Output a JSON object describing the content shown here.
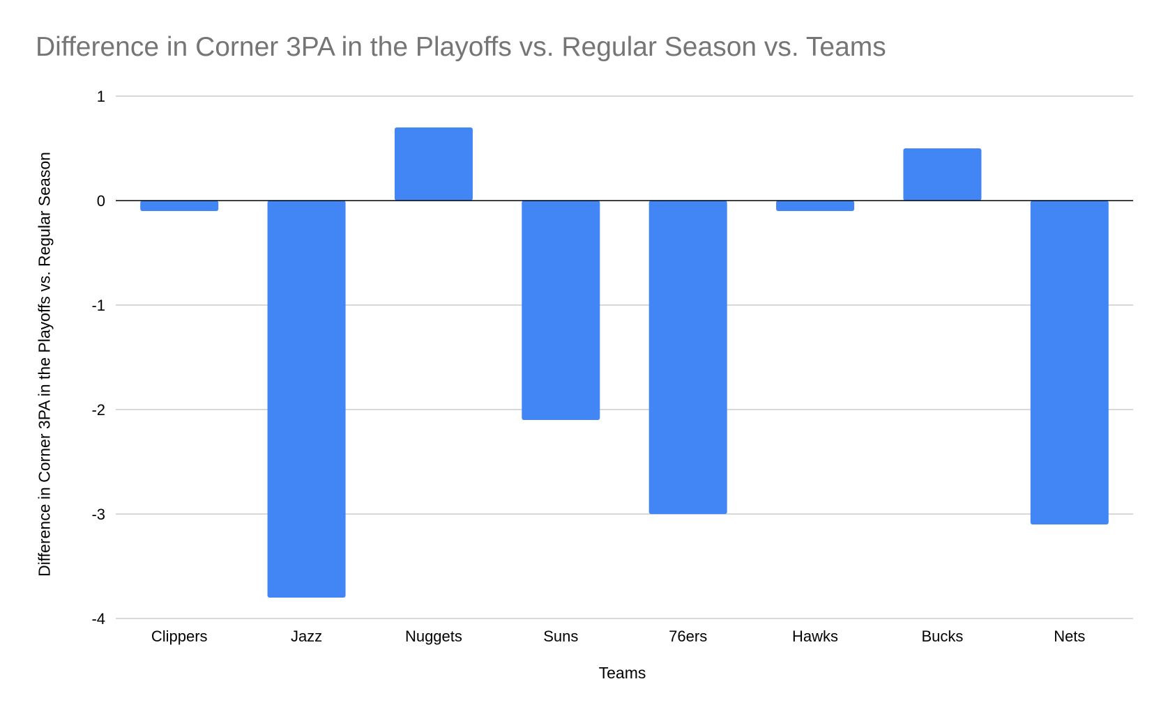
{
  "chart_data": {
    "type": "bar",
    "title": "Difference in Corner 3PA in the Playoffs vs. Regular Season vs. Teams",
    "xlabel": "Teams",
    "ylabel": "Difference in Corner 3PA in the Playoffs vs. Regular Season",
    "categories": [
      "Clippers",
      "Jazz",
      "Nuggets",
      "Suns",
      "76ers",
      "Hawks",
      "Bucks",
      "Nets"
    ],
    "values": [
      -0.1,
      -3.8,
      0.7,
      -2.1,
      -3.0,
      -0.1,
      0.5,
      -3.1
    ],
    "ylim": [
      -4,
      1
    ],
    "yticks": [
      1,
      0,
      -1,
      -2,
      -3,
      -4
    ],
    "grid": true,
    "legend": "none",
    "bar_color": "#4285f4",
    "gridline_color": "#cccccc",
    "zero_line_color": "#000000"
  }
}
